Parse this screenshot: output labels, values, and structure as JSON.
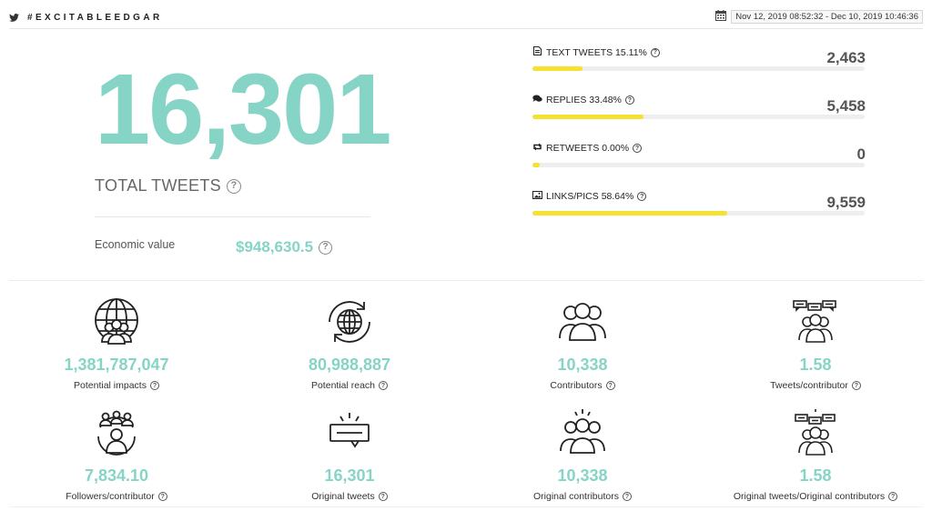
{
  "header": {
    "hashtag": "#EXCITABLEEDGAR",
    "date_range": "Nov 12, 2019 08:52:32 - Dec 10, 2019 10:46:36",
    "icons": [
      "twitter-icon",
      "calendar-icon"
    ]
  },
  "summary": {
    "total_value": "16,301",
    "total_label": "TOTAL TWEETS",
    "economic_label": "Economic value",
    "economic_value": "$948,630.5",
    "help_glyph": "?"
  },
  "stats": [
    {
      "label": "TEXT TWEETS 15.11%",
      "value": "2,463",
      "fraction": 0.1511,
      "icon": "document-icon"
    },
    {
      "label": "REPLIES 33.48%",
      "value": "5,458",
      "fraction": 0.3348,
      "icon": "speech-bubbles-icon"
    },
    {
      "label": "RETWEETS 0.00%",
      "value": "0",
      "fraction": 0.0,
      "icon": "retweet-icon"
    },
    {
      "label": "LINKS/PICS 58.64%",
      "value": "9,559",
      "fraction": 0.5864,
      "icon": "image-icon"
    }
  ],
  "colors": {
    "accent": "#86d4c6",
    "bar": "#f5e12e",
    "track": "#eeeeee"
  },
  "metrics": [
    {
      "value": "1,381,787,047",
      "label": "Potential impacts",
      "icon": "globe-people-icon"
    },
    {
      "value": "80,988,887",
      "label": "Potential reach",
      "icon": "globe-refresh-icon"
    },
    {
      "value": "10,338",
      "label": "Contributors",
      "icon": "group-icon"
    },
    {
      "value": "1.58",
      "label": "Tweets/contributor",
      "icon": "group-chat-icon"
    },
    {
      "value": "7,834.10",
      "label": "Followers/contributor",
      "icon": "network-people-icon"
    },
    {
      "value": "16,301",
      "label": "Original tweets",
      "icon": "message-spark-icon"
    },
    {
      "value": "10,338",
      "label": "Original contributors",
      "icon": "group-spark-icon"
    },
    {
      "value": "1.58",
      "label": "Original tweets/Original contributors",
      "icon": "group-chat-spark-icon"
    }
  ]
}
